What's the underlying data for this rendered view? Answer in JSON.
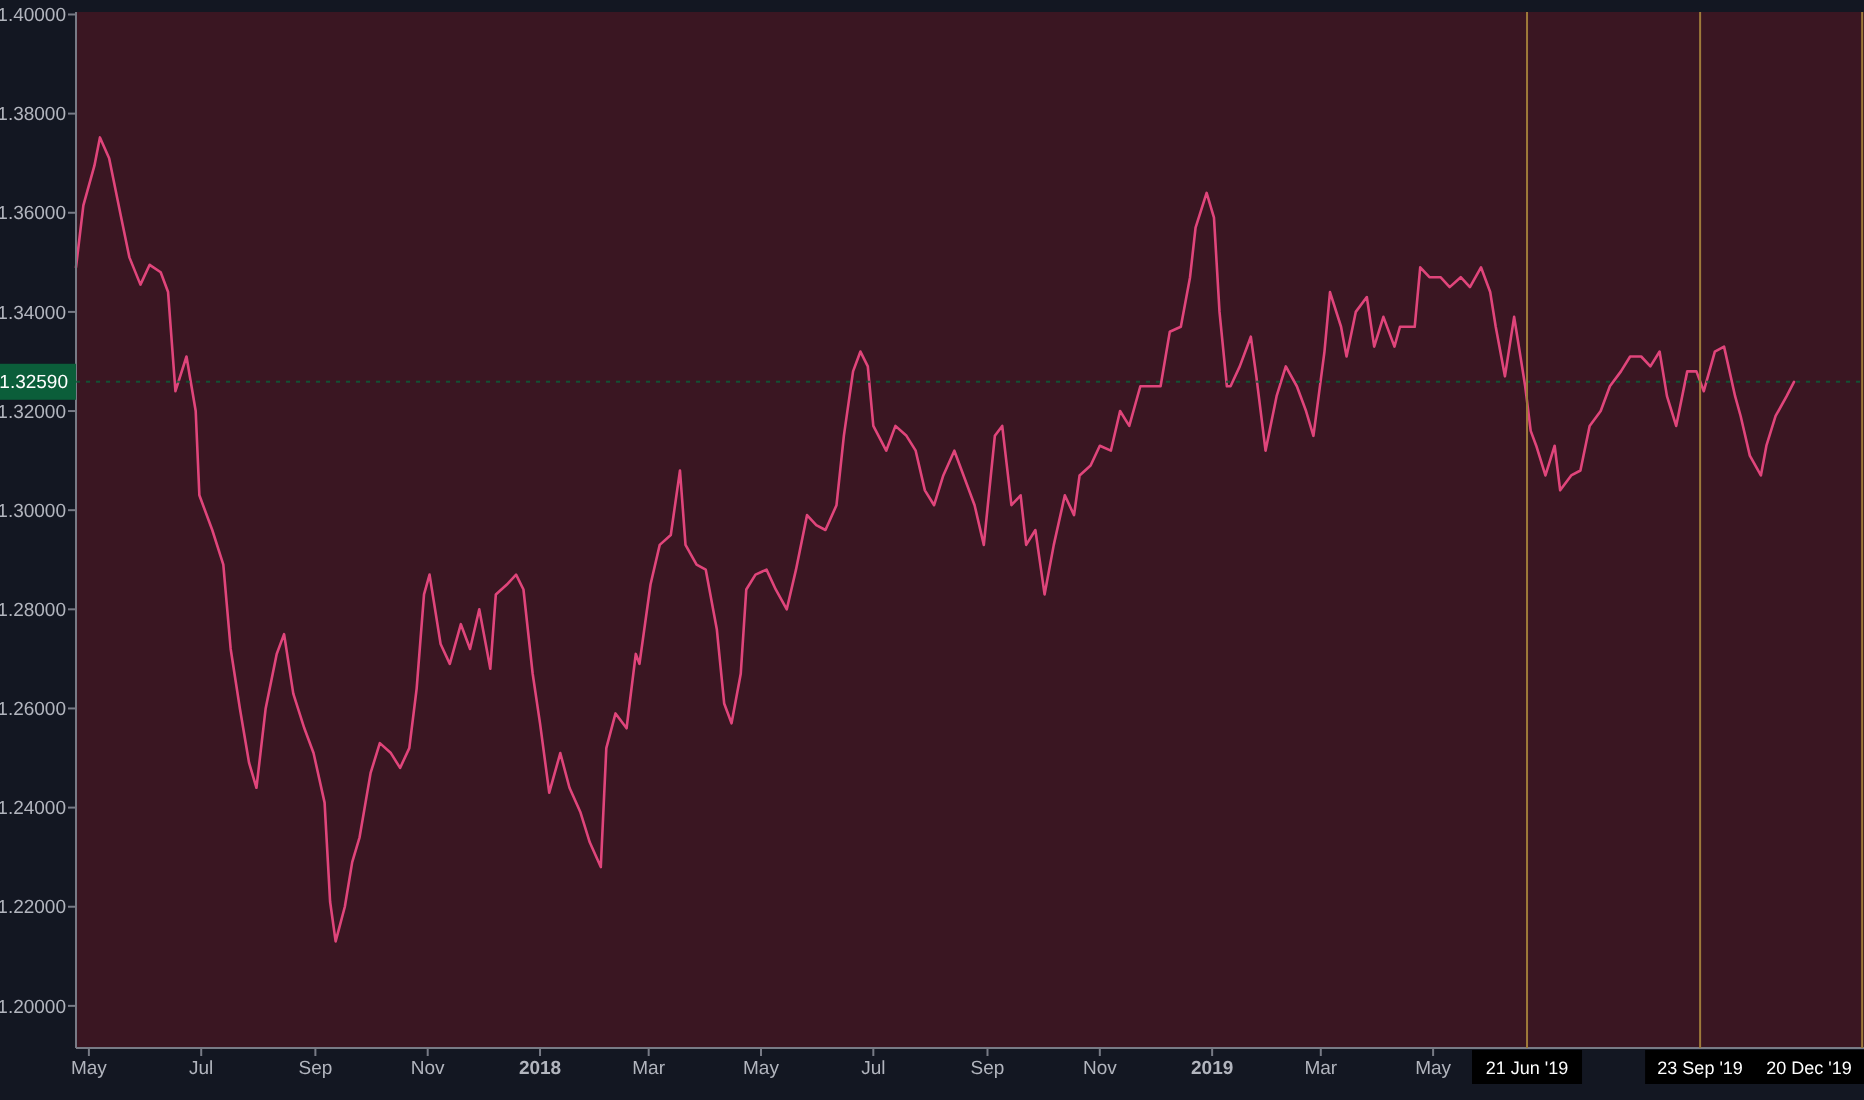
{
  "chart_data": {
    "type": "line",
    "x": [
      "2017-04-24",
      "2017-04-28",
      "2017-05-04",
      "2017-05-07",
      "2017-05-12",
      "2017-05-18",
      "2017-05-23",
      "2017-05-29",
      "2017-06-03",
      "2017-06-09",
      "2017-06-13",
      "2017-06-17",
      "2017-06-23",
      "2017-06-28",
      "2017-06-30",
      "2017-07-07",
      "2017-07-13",
      "2017-07-17",
      "2017-07-22",
      "2017-07-27",
      "2017-07-31",
      "2017-08-05",
      "2017-08-11",
      "2017-08-15",
      "2017-08-20",
      "2017-08-26",
      "2017-08-31",
      "2017-09-06",
      "2017-09-09",
      "2017-09-12",
      "2017-09-17",
      "2017-09-21",
      "2017-09-25",
      "2017-10-01",
      "2017-10-06",
      "2017-10-12",
      "2017-10-17",
      "2017-10-22",
      "2017-10-26",
      "2017-10-30",
      "2017-11-02",
      "2017-11-08",
      "2017-11-13",
      "2017-11-19",
      "2017-11-24",
      "2017-11-29",
      "2017-12-05",
      "2017-12-08",
      "2017-12-14",
      "2017-12-19",
      "2017-12-23",
      "2017-12-28",
      "2018-01-01",
      "2018-01-06",
      "2018-01-12",
      "2018-01-17",
      "2018-01-23",
      "2018-01-28",
      "2018-02-03",
      "2018-02-06",
      "2018-02-11",
      "2018-02-17",
      "2018-02-22",
      "2018-02-24",
      "2018-03-02",
      "2018-03-07",
      "2018-03-13",
      "2018-03-18",
      "2018-03-21",
      "2018-03-27",
      "2018-04-01",
      "2018-04-07",
      "2018-04-11",
      "2018-04-15",
      "2018-04-20",
      "2018-04-23",
      "2018-04-28",
      "2018-05-04",
      "2018-05-09",
      "2018-05-15",
      "2018-05-20",
      "2018-05-26",
      "2018-05-31",
      "2018-06-05",
      "2018-06-11",
      "2018-06-15",
      "2018-06-20",
      "2018-06-24",
      "2018-06-28",
      "2018-07-01",
      "2018-07-08",
      "2018-07-13",
      "2018-07-19",
      "2018-07-24",
      "2018-07-29",
      "2018-08-03",
      "2018-08-08",
      "2018-08-14",
      "2018-08-19",
      "2018-08-25",
      "2018-08-30",
      "2018-09-05",
      "2018-09-09",
      "2018-09-14",
      "2018-09-19",
      "2018-09-22",
      "2018-09-27",
      "2018-10-02",
      "2018-10-07",
      "2018-10-13",
      "2018-10-18",
      "2018-10-21",
      "2018-10-27",
      "2018-11-01",
      "2018-11-07",
      "2018-11-12",
      "2018-11-17",
      "2018-11-23",
      "2018-11-28",
      "2018-12-04",
      "2018-12-09",
      "2018-12-15",
      "2018-12-20",
      "2018-12-23",
      "2018-12-29",
      "2019-01-02",
      "2019-01-05",
      "2019-01-09",
      "2019-01-11",
      "2019-01-16",
      "2019-01-22",
      "2019-01-25",
      "2019-01-30",
      "2019-02-05",
      "2019-02-10",
      "2019-02-16",
      "2019-02-21",
      "2019-02-25",
      "2019-03-03",
      "2019-03-06",
      "2019-03-12",
      "2019-03-15",
      "2019-03-20",
      "2019-03-26",
      "2019-03-30",
      "2019-04-04",
      "2019-04-10",
      "2019-04-13",
      "2019-04-21",
      "2019-04-24",
      "2019-04-29",
      "2019-05-05",
      "2019-05-10",
      "2019-05-16",
      "2019-05-21",
      "2019-05-27",
      "2019-06-01",
      "2019-06-04",
      "2019-06-09",
      "2019-06-14",
      "2019-06-20",
      "2019-06-23",
      "2019-06-26",
      "2019-07-01",
      "2019-07-06",
      "2019-07-09",
      "2019-07-15",
      "2019-07-20",
      "2019-07-25",
      "2019-07-31",
      "2019-08-05",
      "2019-08-11",
      "2019-08-16",
      "2019-08-22",
      "2019-08-27",
      "2019-09-01",
      "2019-09-05",
      "2019-09-10",
      "2019-09-16",
      "2019-09-21",
      "2019-09-25",
      "2019-10-01",
      "2019-10-06",
      "2019-10-12",
      "2019-10-15",
      "2019-10-20",
      "2019-10-26",
      "2019-10-29",
      "2019-11-03",
      "2019-11-09",
      "2019-11-13"
    ],
    "series": [
      {
        "color": "#e0457b",
        "values": [
          1.349,
          1.3615,
          1.3695,
          1.3752,
          1.371,
          1.36,
          1.351,
          1.3455,
          1.3495,
          1.348,
          1.344,
          1.324,
          1.331,
          1.32,
          1.303,
          1.296,
          1.289,
          1.272,
          1.26,
          1.249,
          1.244,
          1.26,
          1.271,
          1.275,
          1.263,
          1.256,
          1.251,
          1.241,
          1.221,
          1.213,
          1.22,
          1.229,
          1.234,
          1.247,
          1.253,
          1.251,
          1.248,
          1.252,
          1.264,
          1.283,
          1.287,
          1.273,
          1.269,
          1.277,
          1.272,
          1.28,
          1.268,
          1.283,
          1.285,
          1.287,
          1.284,
          1.267,
          1.257,
          1.243,
          1.251,
          1.244,
          1.239,
          1.233,
          1.228,
          1.252,
          1.259,
          1.256,
          1.271,
          1.269,
          1.285,
          1.293,
          1.295,
          1.308,
          1.293,
          1.289,
          1.288,
          1.276,
          1.261,
          1.257,
          1.267,
          1.284,
          1.287,
          1.288,
          1.284,
          1.28,
          1.288,
          1.299,
          1.297,
          1.296,
          1.301,
          1.315,
          1.328,
          1.332,
          1.329,
          1.317,
          1.312,
          1.317,
          1.315,
          1.312,
          1.304,
          1.301,
          1.307,
          1.312,
          1.307,
          1.301,
          1.293,
          1.315,
          1.317,
          1.301,
          1.303,
          1.293,
          1.296,
          1.283,
          1.293,
          1.303,
          1.299,
          1.307,
          1.309,
          1.313,
          1.312,
          1.32,
          1.317,
          1.325,
          1.325,
          1.325,
          1.336,
          1.337,
          1.347,
          1.357,
          1.364,
          1.359,
          1.34,
          1.325,
          1.325,
          1.329,
          1.335,
          1.327,
          1.312,
          1.323,
          1.329,
          1.325,
          1.32,
          1.315,
          1.332,
          1.344,
          1.337,
          1.331,
          1.34,
          1.343,
          1.333,
          1.339,
          1.333,
          1.337,
          1.337,
          1.349,
          1.347,
          1.347,
          1.345,
          1.347,
          1.345,
          1.349,
          1.344,
          1.337,
          1.327,
          1.339,
          1.325,
          1.316,
          1.313,
          1.307,
          1.313,
          1.304,
          1.307,
          1.308,
          1.317,
          1.32,
          1.325,
          1.328,
          1.331,
          1.331,
          1.329,
          1.332,
          1.323,
          1.317,
          1.328,
          1.328,
          1.324,
          1.332,
          1.333,
          1.323,
          1.319,
          1.311,
          1.307,
          1.313,
          1.319,
          1.323,
          1.3259
        ]
      }
    ],
    "xlim": [
      "2017-04-24",
      "2019-12-21"
    ],
    "xticks": [
      {
        "value": "2017-05-01",
        "label": "May"
      },
      {
        "value": "2017-07-01",
        "label": "Jul"
      },
      {
        "value": "2017-09-01",
        "label": "Sep"
      },
      {
        "value": "2017-11-01",
        "label": "Nov"
      },
      {
        "value": "2018-01-01",
        "label": "2018"
      },
      {
        "value": "2018-03-01",
        "label": "Mar"
      },
      {
        "value": "2018-05-01",
        "label": "May"
      },
      {
        "value": "2018-07-01",
        "label": "Jul"
      },
      {
        "value": "2018-09-01",
        "label": "Sep"
      },
      {
        "value": "2018-11-01",
        "label": "Nov"
      },
      {
        "value": "2019-01-01",
        "label": "2019"
      },
      {
        "value": "2019-03-01",
        "label": "Mar"
      },
      {
        "value": "2019-05-01",
        "label": "May"
      }
    ],
    "ylim": [
      1.1915,
      1.4005
    ],
    "yticks": [
      {
        "value": 1.2,
        "label": "1.20000"
      },
      {
        "value": 1.22,
        "label": "1.22000"
      },
      {
        "value": 1.24,
        "label": "1.24000"
      },
      {
        "value": 1.26,
        "label": "1.26000"
      },
      {
        "value": 1.28,
        "label": "1.28000"
      },
      {
        "value": 1.3,
        "label": "1.30000"
      },
      {
        "value": 1.32,
        "label": "1.32000"
      },
      {
        "value": 1.34,
        "label": "1.34000"
      },
      {
        "value": 1.36,
        "label": "1.36000"
      },
      {
        "value": 1.38,
        "label": "1.38000"
      },
      {
        "value": 1.4,
        "label": "1.40000"
      }
    ],
    "ref_lines": [
      {
        "axis": "y",
        "value": 1.3259,
        "label": "1.32590",
        "color": "#0b5e3a",
        "line_style": "dotted"
      },
      {
        "axis": "x",
        "value": "2019-06-21",
        "label": "21 Jun '19",
        "color": "#9e7a3a"
      },
      {
        "axis": "x",
        "value": "2019-09-23",
        "label": "23 Sep '19",
        "color": "#9e7a3a"
      },
      {
        "axis": "x",
        "value": "2019-12-20",
        "label": "20 Dec '19",
        "color": "#9e7a3a"
      }
    ],
    "line_style": "solid"
  }
}
